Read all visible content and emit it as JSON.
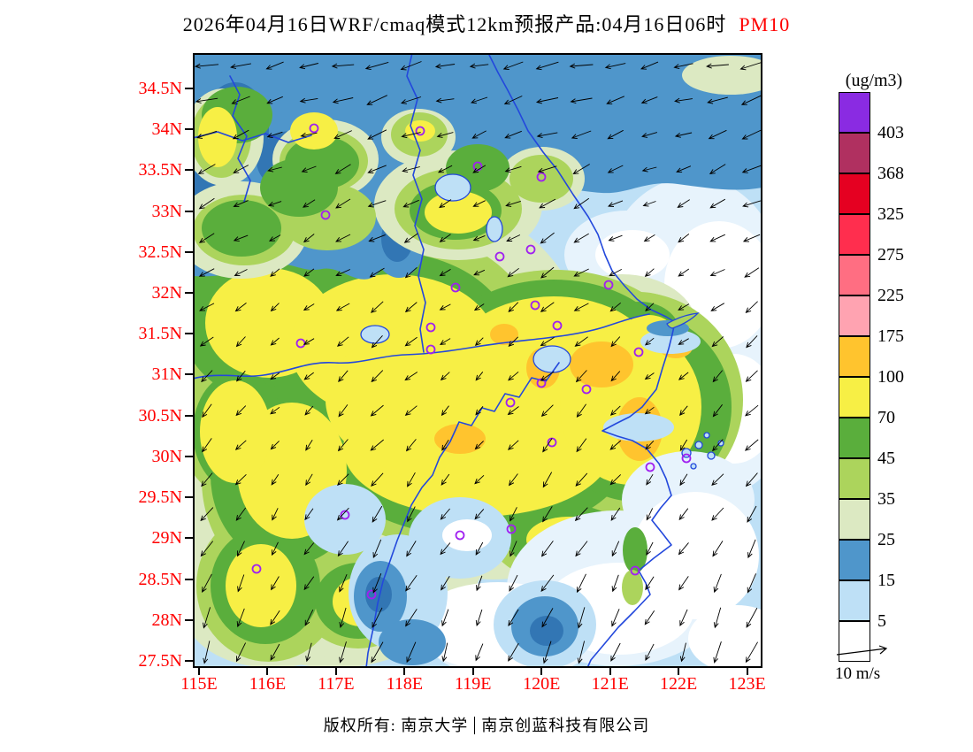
{
  "title": {
    "text": "2026年04月16日WRF/cmaq模式12km预报产品:04月16日06时",
    "pollutant": "PM10",
    "pollutant_color": "#FF0000"
  },
  "axes": {
    "lat_labels": [
      "34.5N",
      "34N",
      "33.5N",
      "33N",
      "32.5N",
      "32N",
      "31.5N",
      "31N",
      "30.5N",
      "30N",
      "29.5N",
      "29N",
      "28.5N",
      "28N",
      "27.5N"
    ],
    "lon_labels": [
      "115E",
      "116E",
      "117E",
      "118E",
      "119E",
      "120E",
      "121E",
      "122E",
      "123E"
    ],
    "label_color": "#FF0000"
  },
  "legend": {
    "unit": "(ug/m3)",
    "levels": [
      403,
      368,
      325,
      275,
      225,
      175,
      100,
      70,
      45,
      35,
      25,
      15,
      5
    ],
    "colors": [
      "#8A2BE2",
      "#B03060",
      "#E50021",
      "#FF2E4E",
      "#FF6E82",
      "#FFA3B1",
      "#FFC42E",
      "#F7EF45",
      "#5AAE3C",
      "#ACD45C",
      "#DCE9C2",
      "#4F96CB",
      "#BEE0F6",
      "#FFFFFF"
    ]
  },
  "wind_legend": {
    "label": "10 m/s"
  },
  "footer": {
    "left": "版权所有: 南京大学",
    "right": "南京创蓝科技有限公司"
  },
  "chart_data": {
    "type": "heatmap",
    "title": "WRF/CMAQ 12km PM10 forecast, 2026-04-16 06h",
    "unit": "ug/m3",
    "x_range": [
      "115E",
      "123E"
    ],
    "y_range": [
      "27.5N",
      "34.5N"
    ],
    "contour_levels": [
      5,
      15,
      25,
      35,
      45,
      70,
      100,
      175,
      225,
      275,
      325,
      368,
      403
    ],
    "legend_position": "right",
    "wind_reference_speed_mps": 10
  }
}
